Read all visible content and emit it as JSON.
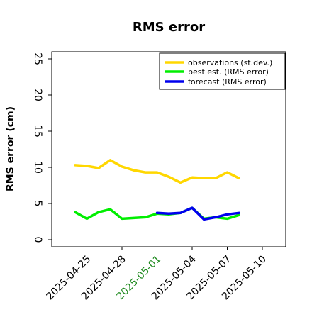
{
  "chart_data": {
    "type": "line",
    "title": "RMS error",
    "xlabel": "",
    "ylabel": "RMS error (cm)",
    "ylim": [
      0,
      26
    ],
    "xlim": [
      "2025-04-22",
      "2025-05-12"
    ],
    "y_ticks": [
      "0",
      "5",
      "10",
      "15",
      "20",
      "25"
    ],
    "x_ticks": [
      {
        "label": "2025-04-25",
        "date": "2025-04-25",
        "color": "#000000"
      },
      {
        "label": "2025-04-28",
        "date": "2025-04-28",
        "color": "#000000"
      },
      {
        "label": "2025-05-01",
        "date": "2025-05-01",
        "color": "#228b22"
      },
      {
        "label": "2025-05-04",
        "date": "2025-05-04",
        "color": "#000000"
      },
      {
        "label": "2025-05-07",
        "date": "2025-05-07",
        "color": "#000000"
      },
      {
        "label": "2025-05-10",
        "date": "2025-05-10",
        "color": "#000000"
      }
    ],
    "legend_position": "top-right",
    "grid": false,
    "series": [
      {
        "name": "observations (st.dev.)",
        "color": "#ffd700",
        "x": [
          "2025-04-24",
          "2025-04-25",
          "2025-04-26",
          "2025-04-27",
          "2025-04-28",
          "2025-04-29",
          "2025-04-30",
          "2025-05-01",
          "2025-05-02",
          "2025-05-03",
          "2025-05-04",
          "2025-05-05",
          "2025-05-06",
          "2025-05-07",
          "2025-05-08"
        ],
        "values": [
          10.3,
          10.2,
          9.9,
          11.0,
          10.1,
          9.6,
          9.3,
          9.3,
          8.7,
          7.9,
          8.6,
          8.5,
          8.5,
          9.3,
          8.5
        ]
      },
      {
        "name": "best est. (RMS error)",
        "color": "#00ee00",
        "x": [
          "2025-04-24",
          "2025-04-25",
          "2025-04-26",
          "2025-04-27",
          "2025-04-28",
          "2025-04-29",
          "2025-04-30",
          "2025-05-01",
          "2025-05-02",
          "2025-05-03",
          "2025-05-04",
          "2025-05-05",
          "2025-05-06",
          "2025-05-07",
          "2025-05-08"
        ],
        "values": [
          3.8,
          2.9,
          3.8,
          4.2,
          2.9,
          3.0,
          3.1,
          3.6,
          3.5,
          3.7,
          4.4,
          2.9,
          3.1,
          2.9,
          3.4
        ]
      },
      {
        "name": "forecast (RMS error)",
        "color": "#0000ee",
        "x": [
          "2025-05-01",
          "2025-05-02",
          "2025-05-03",
          "2025-05-04",
          "2025-05-05",
          "2025-05-06",
          "2025-05-07",
          "2025-05-08"
        ],
        "values": [
          3.7,
          3.6,
          3.7,
          4.4,
          2.8,
          3.1,
          3.5,
          3.7
        ]
      }
    ]
  }
}
